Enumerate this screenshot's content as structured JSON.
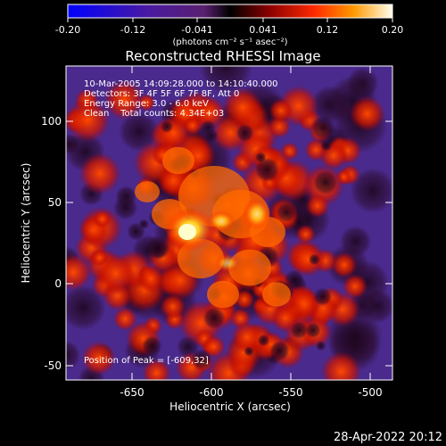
{
  "colorbar": {
    "ticks": [
      "-0.20",
      "-0.12",
      "-0.041",
      "0.041",
      "0.12",
      "0.20"
    ],
    "units": "(photons cm⁻² s⁻¹ asec⁻²)"
  },
  "title": "Reconstructed RHESSI Image",
  "info": {
    "line1": "10-Mar-2005 14:09:28.000 to 14:10:40.000",
    "line2": "Detectors: 3F 4F 5F 6F 7F 8F, Att 0",
    "line3": "Energy Range: 3.0 - 6.0 keV",
    "line4": "Clean    Total counts: 4.34E+03"
  },
  "peak_label": "Position of Peak = [-609,32]",
  "axes": {
    "xlabel": "Heliocentric X (arcsec)",
    "ylabel": "Heliocentric Y (arcsec)",
    "x_ticks": [
      "-650",
      "-600",
      "-550",
      "-500"
    ],
    "y_ticks": [
      "-50",
      "0",
      "50",
      "100"
    ]
  },
  "footer": {
    "date": "28-Apr-2022 20:12"
  },
  "colors": {
    "background": "#000000",
    "cold": "#3a1f6e",
    "mid": "#cc1800",
    "hot": "#ffff66"
  }
}
